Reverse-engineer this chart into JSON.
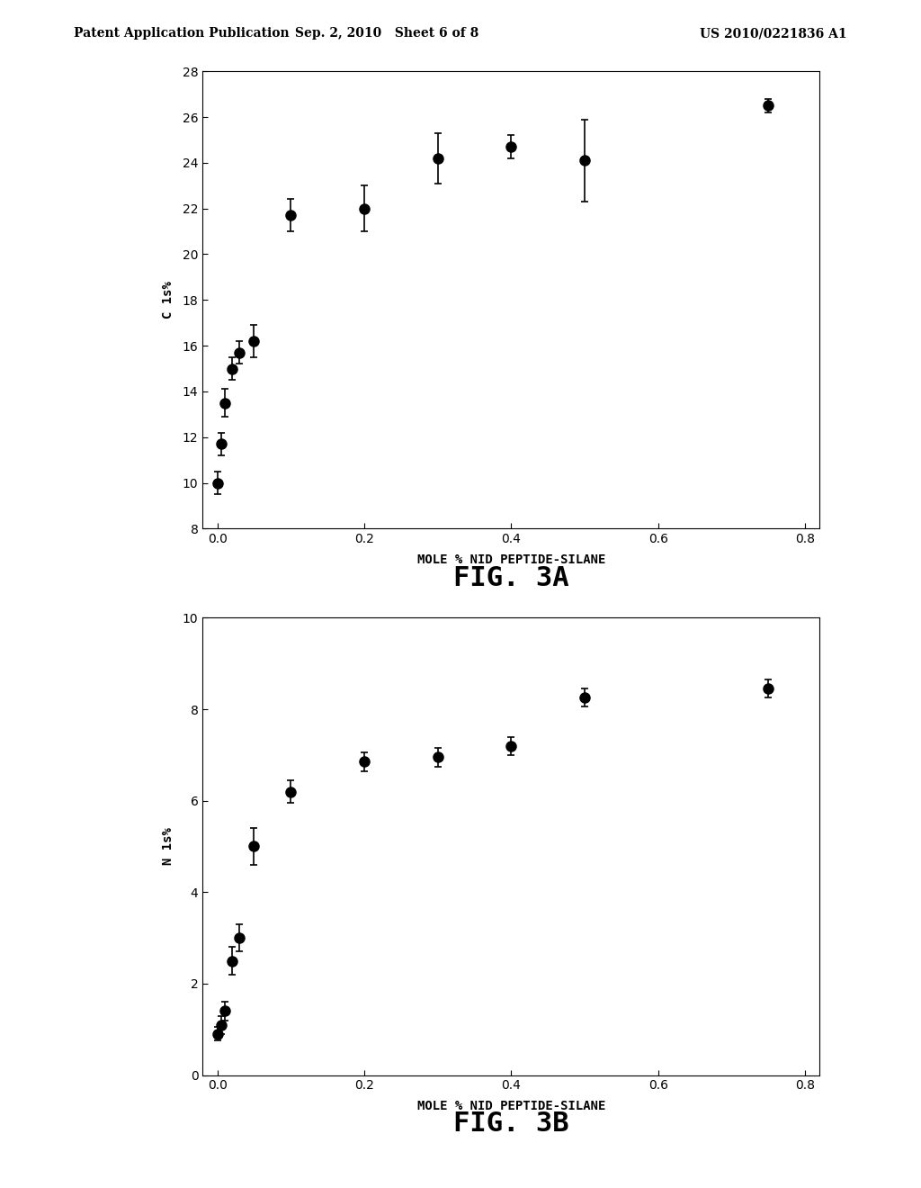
{
  "fig3a": {
    "x": [
      0.0,
      0.005,
      0.01,
      0.02,
      0.03,
      0.05,
      0.1,
      0.2,
      0.3,
      0.4,
      0.5,
      0.75
    ],
    "y": [
      10.0,
      11.7,
      13.5,
      15.0,
      15.7,
      16.2,
      21.7,
      22.0,
      24.2,
      24.7,
      24.1,
      26.5
    ],
    "yerr": [
      0.5,
      0.5,
      0.6,
      0.5,
      0.5,
      0.7,
      0.7,
      1.0,
      1.1,
      0.5,
      1.8,
      0.3
    ],
    "xlabel": "MOLE % NID PEPTIDE-SILANE",
    "ylabel": "C 1s%",
    "title": "FIG. 3A",
    "xlim": [
      -0.02,
      0.82
    ],
    "ylim": [
      8,
      28
    ],
    "yticks": [
      8,
      10,
      12,
      14,
      16,
      18,
      20,
      22,
      24,
      26,
      28
    ],
    "xticks": [
      0.0,
      0.2,
      0.4,
      0.6,
      0.8
    ]
  },
  "fig3b": {
    "x": [
      0.0,
      0.005,
      0.01,
      0.02,
      0.03,
      0.05,
      0.1,
      0.2,
      0.3,
      0.4,
      0.5,
      0.75
    ],
    "y": [
      0.9,
      1.1,
      1.4,
      2.5,
      3.0,
      5.0,
      6.2,
      6.85,
      6.95,
      7.2,
      8.25,
      8.45
    ],
    "yerr": [
      0.15,
      0.2,
      0.2,
      0.3,
      0.3,
      0.4,
      0.25,
      0.2,
      0.2,
      0.2,
      0.2,
      0.2
    ],
    "xlabel": "MOLE % NID PEPTIDE-SILANE",
    "ylabel": "N 1s%",
    "title": "FIG. 3B",
    "xlim": [
      -0.02,
      0.82
    ],
    "ylim": [
      0,
      10
    ],
    "yticks": [
      0,
      2,
      4,
      6,
      8,
      10
    ],
    "xticks": [
      0.0,
      0.2,
      0.4,
      0.6,
      0.8
    ]
  },
  "header_left": "Patent Application Publication",
  "header_mid": "Sep. 2, 2010   Sheet 6 of 8",
  "header_right": "US 2010/0221836 A1",
  "bg_color": "#ffffff",
  "line_color": "#000000",
  "marker_color": "#000000",
  "title_fontsize": 22,
  "axis_label_fontsize": 10,
  "tick_fontsize": 10,
  "header_fontsize": 10
}
